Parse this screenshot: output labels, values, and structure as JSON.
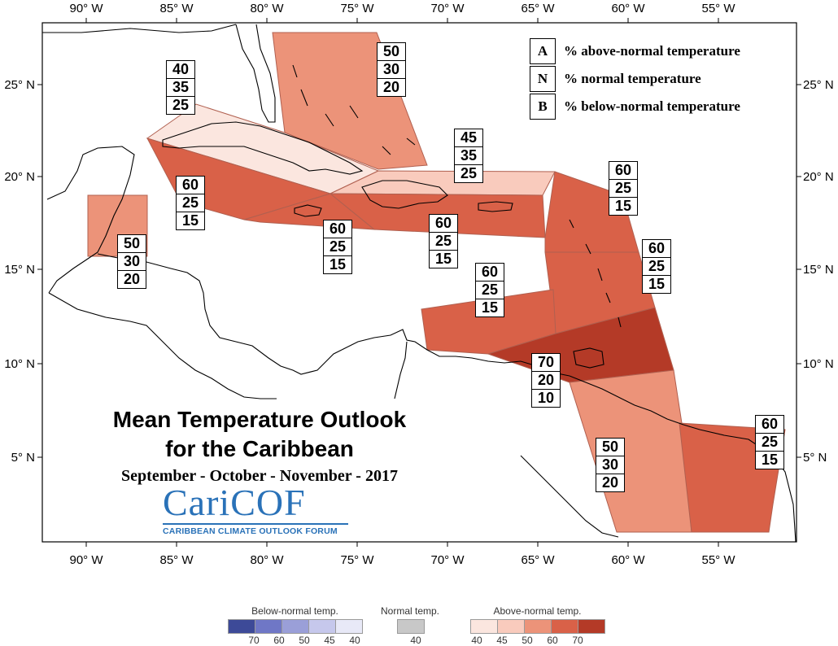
{
  "map": {
    "top_longitudes": [
      "90° W",
      "85° W",
      "80° W",
      "75° W",
      "70° W",
      "65° W",
      "60° W",
      "55° W"
    ],
    "bottom_longitudes": [
      "90° W",
      "85° W",
      "80° W",
      "75° W",
      "70° W",
      "65° W",
      "60° W",
      "55° W"
    ],
    "left_latitudes": [
      "25° N",
      "20° N",
      "15° N",
      "10° N",
      "5° N"
    ],
    "right_latitudes": [
      "25° N",
      "20° N",
      "15° N",
      "10° N",
      "5° N"
    ]
  },
  "key": [
    {
      "letter": "A",
      "text": "% above-normal temperature"
    },
    {
      "letter": "N",
      "text": "% normal temperature"
    },
    {
      "letter": "B",
      "text": "% below-normal temperature"
    }
  ],
  "regions": [
    {
      "id": "bahamas",
      "a": "50",
      "n": "30",
      "b": "20",
      "category": "above-50"
    },
    {
      "id": "cuba",
      "a": "40",
      "n": "35",
      "b": "25",
      "category": "above-40"
    },
    {
      "id": "cayman",
      "a": "60",
      "n": "25",
      "b": "15",
      "category": "above-60"
    },
    {
      "id": "belize",
      "a": "50",
      "n": "30",
      "b": "20",
      "category": "above-50"
    },
    {
      "id": "jamaica",
      "a": "60",
      "n": "25",
      "b": "15",
      "category": "above-60"
    },
    {
      "id": "hispaniola-north",
      "a": "45",
      "n": "35",
      "b": "25",
      "category": "above-45"
    },
    {
      "id": "hispaniola-pr",
      "a": "60",
      "n": "25",
      "b": "15",
      "category": "above-60"
    },
    {
      "id": "leeward",
      "a": "60",
      "n": "25",
      "b": "15",
      "category": "above-60"
    },
    {
      "id": "windward",
      "a": "60",
      "n": "25",
      "b": "15",
      "category": "above-60"
    },
    {
      "id": "abc-islands",
      "a": "60",
      "n": "25",
      "b": "15",
      "category": "above-60"
    },
    {
      "id": "trinidad",
      "a": "70",
      "n": "20",
      "b": "10",
      "category": "above-70"
    },
    {
      "id": "guyana",
      "a": "50",
      "n": "30",
      "b": "20",
      "category": "above-50"
    },
    {
      "id": "suriname-guiana",
      "a": "60",
      "n": "25",
      "b": "15",
      "category": "above-60"
    }
  ],
  "title": {
    "line1": "Mean Temperature Outlook",
    "line2": "for the Caribbean",
    "season": "September - October - November - 2017"
  },
  "logo": {
    "word": "CariCOF",
    "subtitle": "CARIBBEAN CLIMATE OUTLOOK FORUM"
  },
  "colors": {
    "above-40": "#fbe6df",
    "above-45": "#f9cbbd",
    "above-50": "#ec9379",
    "above-60": "#d96148",
    "above-70": "#b43a27",
    "normal": "#c8c8c8",
    "below-40": "#e8e9f7",
    "below-45": "#c6c8ec",
    "below-50": "#9a9fd8",
    "below-60": "#6f77c6",
    "below-70": "#3d4a98",
    "coast": "#000000",
    "logo": "#2a72b8"
  },
  "scale": {
    "below": {
      "title": "Below-normal temp.",
      "ticks": [
        "70",
        "60",
        "50",
        "45",
        "40"
      ]
    },
    "normal": {
      "title": "Normal temp.",
      "ticks": [
        "40"
      ]
    },
    "above": {
      "title": "Above-normal temp.",
      "ticks": [
        "40",
        "45",
        "50",
        "60",
        "70"
      ]
    }
  }
}
